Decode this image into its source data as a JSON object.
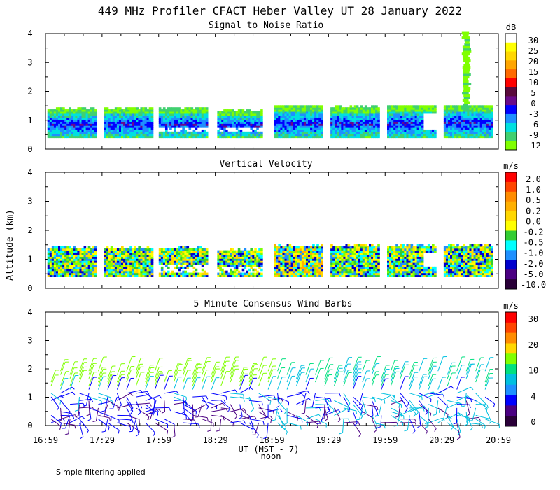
{
  "figure": {
    "title": "449 MHz Profiler CFACT Heber Valley UT 28 January 2022",
    "y_label": "Altitude (km)",
    "x_label": "UT (MST - 7)",
    "x_sublabel": "noon",
    "x_ticks": [
      "16:59",
      "17:29",
      "17:59",
      "18:29",
      "18:59",
      "19:29",
      "19:59",
      "20:29",
      "20:59"
    ],
    "x_range_hours": [
      16.983,
      20.983
    ],
    "y_ticks": [
      "0",
      "1",
      "2",
      "3",
      "4"
    ],
    "y_range_km": [
      0,
      4
    ],
    "footnote": "Simple filtering applied"
  },
  "chart_data": [
    {
      "type": "heatmap",
      "title": "Signal to Noise Ratio",
      "units": "dB",
      "colorbar_labels": [
        "30",
        "25",
        "20",
        "15",
        "10",
        "5",
        "0",
        "-3",
        "-6",
        "-9",
        "-12"
      ],
      "colorbar_colors": [
        "#ffffff",
        "#ffff00",
        "#ffd700",
        "#ffa500",
        "#ff6a00",
        "#ff0000",
        "#5a0a3c",
        "#6a0a8a",
        "#0000ff",
        "#1e8fff",
        "#00e0e0",
        "#40d070",
        "#80ff00"
      ],
      "data_altitude_range_km": [
        0.4,
        1.5
      ],
      "scan_blocks": [
        {
          "start": "17:00",
          "end": "17:26",
          "top_km": 1.45
        },
        {
          "start": "17:30",
          "end": "17:56",
          "top_km": 1.45
        },
        {
          "start": "17:59",
          "end": "18:25",
          "top_km": 1.45
        },
        {
          "start": "18:30",
          "end": "18:54",
          "top_km": 1.35
        },
        {
          "start": "19:00",
          "end": "19:26",
          "top_km": 1.55
        },
        {
          "start": "19:30",
          "end": "19:56",
          "top_km": 1.5
        },
        {
          "start": "20:00",
          "end": "20:26",
          "top_km": 1.55
        },
        {
          "start": "20:30",
          "end": "20:56",
          "top_km": 1.55
        }
      ],
      "column_plume": {
        "time": "20:40",
        "top_km": 4.0
      }
    },
    {
      "type": "heatmap",
      "title": "Vertical Velocity",
      "units": "m/s",
      "colorbar_labels": [
        "2.0",
        "1.0",
        "0.5",
        "0.2",
        "0.0",
        "-0.2",
        "-0.5",
        "-1.0",
        "-2.0",
        "-5.0",
        "-10.0"
      ],
      "colorbar_colors": [
        "#ff0000",
        "#ff4500",
        "#ff8c00",
        "#ffb000",
        "#ffd700",
        "#ffff00",
        "#32cd32",
        "#00ffff",
        "#1e90ff",
        "#0000cd",
        "#4b0082",
        "#2a0038"
      ],
      "data_altitude_range_km": [
        0.4,
        1.45
      ]
    },
    {
      "type": "wind_barbs",
      "title": "5 Minute Consensus Wind Barbs",
      "units": "m/s",
      "interval_minutes": 5,
      "colorbar_labels": [
        "30",
        "20",
        "10",
        "4",
        "0"
      ],
      "colorbar_colors": [
        "#ff0000",
        "#ff4500",
        "#ff8c00",
        "#ffd700",
        "#80ff00",
        "#00e080",
        "#00c0e0",
        "#1e90ff",
        "#0000ff",
        "#4b0082",
        "#2a0038"
      ],
      "altitude_range_km": [
        0.1,
        1.95
      ]
    }
  ]
}
